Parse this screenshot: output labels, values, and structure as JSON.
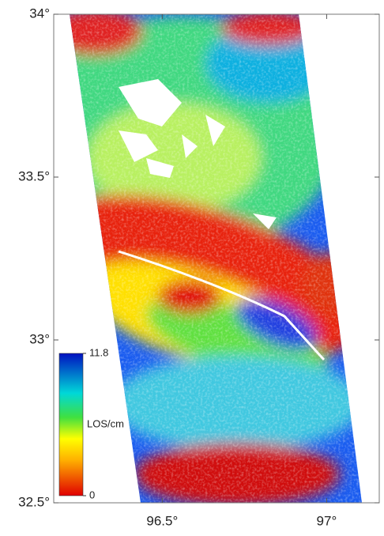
{
  "map": {
    "xlim": [
      96.17,
      97.16
    ],
    "ylim": [
      32.5,
      34
    ],
    "xticks": [
      {
        "value": 96.5,
        "label": "96.5°"
      },
      {
        "value": 97,
        "label": "97°"
      }
    ],
    "yticks": [
      {
        "value": 34,
        "label": "34°"
      },
      {
        "value": 33.5,
        "label": "33.5°"
      },
      {
        "value": 33,
        "label": "33°"
      },
      {
        "value": 32.5,
        "label": "32.5°"
      }
    ],
    "colorbar": {
      "label": "LOS/cm",
      "min": 0,
      "max": 11.8
    }
  }
}
